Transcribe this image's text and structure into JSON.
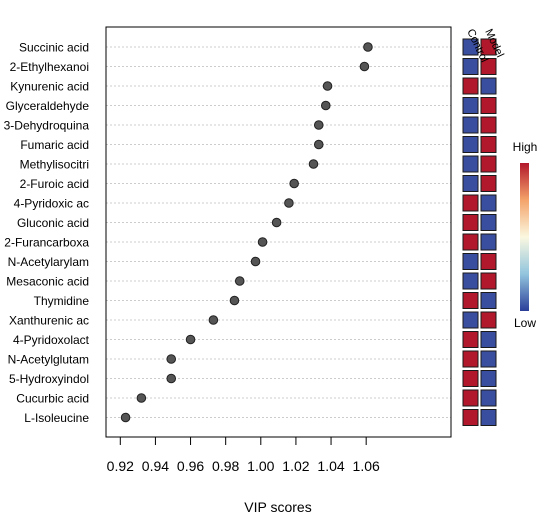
{
  "chart_data": {
    "type": "scatter",
    "xlabel": "VIP scores",
    "xlim": [
      0.91,
      1.07
    ],
    "xticks": [
      "0.92",
      "0.94",
      "0.96",
      "0.98",
      "1.00",
      "1.02",
      "1.04",
      "1.06"
    ],
    "grid": true,
    "metabolites": [
      {
        "name": "Succinic acid",
        "vip": 1.061,
        "control": "low",
        "model": "high"
      },
      {
        "name": "2-Ethylhexanoi",
        "vip": 1.059,
        "control": "low",
        "model": "high"
      },
      {
        "name": "Kynurenic acid",
        "vip": 1.038,
        "control": "high",
        "model": "low"
      },
      {
        "name": "Glyceraldehyde",
        "vip": 1.037,
        "control": "low",
        "model": "high"
      },
      {
        "name": "3-Dehydroquina",
        "vip": 1.033,
        "control": "low",
        "model": "high"
      },
      {
        "name": "Fumaric acid",
        "vip": 1.033,
        "control": "low",
        "model": "high"
      },
      {
        "name": "Methylisocitri",
        "vip": 1.03,
        "control": "low",
        "model": "high"
      },
      {
        "name": "2-Furoic acid",
        "vip": 1.019,
        "control": "low",
        "model": "high"
      },
      {
        "name": "4-Pyridoxic ac",
        "vip": 1.016,
        "control": "high",
        "model": "low"
      },
      {
        "name": "Gluconic acid",
        "vip": 1.009,
        "control": "high",
        "model": "low"
      },
      {
        "name": "2-Furancarboxa",
        "vip": 1.001,
        "control": "high",
        "model": "low"
      },
      {
        "name": "N-Acetylarylam",
        "vip": 0.997,
        "control": "low",
        "model": "high"
      },
      {
        "name": "Mesaconic acid",
        "vip": 0.988,
        "control": "low",
        "model": "high"
      },
      {
        "name": "Thymidine",
        "vip": 0.985,
        "control": "high",
        "model": "low"
      },
      {
        "name": "Xanthurenic ac",
        "vip": 0.973,
        "control": "low",
        "model": "high"
      },
      {
        "name": "4-Pyridoxolact",
        "vip": 0.96,
        "control": "high",
        "model": "low"
      },
      {
        "name": "N-Acetylglutam",
        "vip": 0.949,
        "control": "high",
        "model": "low"
      },
      {
        "name": "5-Hydroxyindol",
        "vip": 0.949,
        "control": "high",
        "model": "low"
      },
      {
        "name": "Cucurbic acid",
        "vip": 0.932,
        "control": "high",
        "model": "low"
      },
      {
        "name": "L-Isoleucine",
        "vip": 0.923,
        "control": "high",
        "model": "low"
      }
    ],
    "groups": [
      "Control",
      "Model"
    ],
    "legend": {
      "high_label": "High",
      "low_label": "Low",
      "placement": "right"
    },
    "colors": {
      "high": "#b2182b",
      "low": "#3a4ea0",
      "point": "#555555",
      "grid": "#cccccc"
    }
  }
}
